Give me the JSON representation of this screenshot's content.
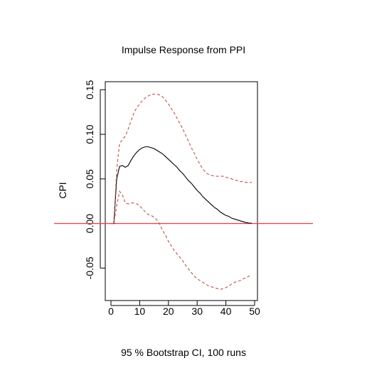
{
  "chart_data": {
    "type": "line",
    "title": "Impulse Response from PPI",
    "ylabel": "CPI",
    "xlabel": "",
    "caption": "95 % Bootstrap CI,  100 runs",
    "xlim": [
      0,
      50
    ],
    "ylim": [
      -0.08,
      0.155
    ],
    "x_ticks": [
      0,
      10,
      20,
      30,
      40,
      50
    ],
    "y_ticks": [
      -0.05,
      0.0,
      0.05,
      0.1,
      0.15
    ],
    "y_tick_labels": [
      "-0.05",
      "0.00",
      "0.05",
      "0.10",
      "0.15"
    ],
    "grid": false,
    "zero_line": {
      "value": 0,
      "color": "#e8474f"
    },
    "series": [
      {
        "role": "response",
        "color": "#000000",
        "style": "solid",
        "x": [
          0,
          1,
          2,
          3,
          4,
          5,
          6,
          7,
          8,
          9,
          10,
          11,
          12,
          13,
          14,
          15,
          16,
          17,
          18,
          19,
          20,
          21,
          22,
          23,
          24,
          25,
          26,
          27,
          28,
          29,
          30,
          31,
          32,
          33,
          34,
          35,
          36,
          37,
          38,
          39,
          40,
          41,
          42,
          43,
          44,
          45,
          46,
          47,
          48,
          49
        ],
        "y": [
          0,
          0,
          0.05,
          0.064,
          0.065,
          0.063,
          0.065,
          0.071,
          0.076,
          0.08,
          0.083,
          0.085,
          0.086,
          0.086,
          0.085,
          0.084,
          0.082,
          0.08,
          0.078,
          0.075,
          0.072,
          0.069,
          0.066,
          0.063,
          0.059,
          0.056,
          0.052,
          0.048,
          0.045,
          0.041,
          0.037,
          0.034,
          0.03,
          0.027,
          0.024,
          0.021,
          0.018,
          0.016,
          0.013,
          0.011,
          0.009,
          0.008,
          0.006,
          0.005,
          0.004,
          0.003,
          0.002,
          0.001,
          0.0005,
          0.0002
        ]
      },
      {
        "role": "upper",
        "color": "#c0504d",
        "style": "dashed",
        "x": [
          0,
          1,
          2,
          3,
          4,
          5,
          6,
          7,
          8,
          9,
          10,
          11,
          12,
          13,
          14,
          15,
          16,
          17,
          18,
          19,
          20,
          21,
          22,
          23,
          24,
          25,
          26,
          27,
          28,
          29,
          30,
          31,
          32,
          33,
          34,
          35,
          36,
          37,
          38,
          39,
          40,
          41,
          42,
          43,
          44,
          45,
          46,
          47,
          48,
          49
        ],
        "y": [
          0,
          0,
          0.06,
          0.09,
          0.094,
          0.098,
          0.106,
          0.115,
          0.124,
          0.13,
          0.134,
          0.138,
          0.141,
          0.143,
          0.145,
          0.145,
          0.145,
          0.144,
          0.142,
          0.138,
          0.134,
          0.129,
          0.124,
          0.118,
          0.112,
          0.106,
          0.099,
          0.092,
          0.085,
          0.079,
          0.072,
          0.066,
          0.061,
          0.057,
          0.055,
          0.054,
          0.053,
          0.053,
          0.053,
          0.053,
          0.052,
          0.051,
          0.05,
          0.049,
          0.048,
          0.047,
          0.047,
          0.046,
          0.046,
          0.046
        ]
      },
      {
        "role": "lower",
        "color": "#c0504d",
        "style": "dashed",
        "x": [
          0,
          1,
          2,
          3,
          4,
          5,
          6,
          7,
          8,
          9,
          10,
          11,
          12,
          13,
          14,
          15,
          16,
          17,
          18,
          19,
          20,
          21,
          22,
          23,
          24,
          25,
          26,
          27,
          28,
          29,
          30,
          31,
          32,
          33,
          34,
          35,
          36,
          37,
          38,
          39,
          40,
          41,
          42,
          43,
          44,
          45,
          46,
          47,
          48,
          49
        ],
        "y": [
          0,
          0,
          0.02,
          0.036,
          0.032,
          0.023,
          0.022,
          0.023,
          0.023,
          0.022,
          0.02,
          0.016,
          0.013,
          0.01,
          0.009,
          0.007,
          0.004,
          -0.001,
          -0.008,
          -0.013,
          -0.02,
          -0.025,
          -0.03,
          -0.034,
          -0.038,
          -0.042,
          -0.047,
          -0.051,
          -0.055,
          -0.059,
          -0.062,
          -0.064,
          -0.066,
          -0.068,
          -0.07,
          -0.071,
          -0.072,
          -0.073,
          -0.074,
          -0.073,
          -0.072,
          -0.07,
          -0.068,
          -0.066,
          -0.065,
          -0.064,
          -0.062,
          -0.061,
          -0.059,
          -0.058
        ]
      }
    ]
  }
}
